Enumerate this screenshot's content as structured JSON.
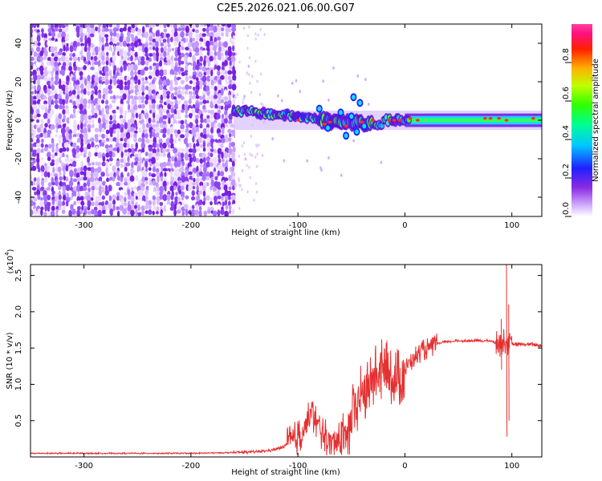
{
  "title": "C2E5.2026.021.06.00.G07",
  "colors": {
    "snr_line": "#e53030",
    "frame": "#000000"
  },
  "chart_data": [
    {
      "type": "heatmap",
      "name": "spectrogram",
      "xlabel": "Height of straight line (km)",
      "ylabel": "Frequency (Hz)",
      "xlim": [
        -350,
        128
      ],
      "ylim": [
        -50,
        50
      ],
      "xticks": [
        -300,
        -200,
        -100,
        0,
        100
      ],
      "xtick_labels": [
        "-300",
        "-200",
        "-100",
        "0",
        "100"
      ],
      "yticks": [
        -40,
        -20,
        0,
        20,
        40
      ],
      "ytick_labels": [
        "-40",
        "-20",
        "0",
        "20",
        "40"
      ],
      "colorbar": {
        "label": "Normalized spectral amplitude",
        "range": [
          0,
          1
        ],
        "ticks": [
          0.0,
          0.2,
          0.4,
          0.6,
          0.8
        ],
        "tick_labels": [
          "0.0",
          "0.2",
          "0.4",
          "0.6",
          "0.8"
        ],
        "colormap": "rainbow (violet to red)"
      },
      "features": [
        {
          "x_range": [
            -350,
            -160
          ],
          "description": "broadband noise, amplitude ~0.0-0.2"
        },
        {
          "x_range": [
            -160,
            128
          ],
          "center_freq_hz": 0,
          "description": "narrow tone near 0 Hz, amplitude ~0.3-0.9"
        }
      ]
    },
    {
      "type": "line",
      "name": "snr",
      "xlabel": "Height of straight line (km)",
      "ylabel": "SNR (10 * v/v)",
      "y_scale_label": "(x10^4)",
      "y_scale_base": "(x10",
      "y_scale_exp": "4",
      "y_scale_close": ")",
      "xlim": [
        -350,
        128
      ],
      "ylim": [
        0,
        2.65
      ],
      "xticks": [
        -300,
        -200,
        -100,
        0,
        100
      ],
      "xtick_labels": [
        "-300",
        "-200",
        "-100",
        "0",
        "100"
      ],
      "yticks": [
        0.5,
        1.0,
        1.5,
        2.0,
        2.5
      ],
      "ytick_labels": [
        "0.5",
        "1.0",
        "1.5",
        "2.0",
        "2.5"
      ],
      "series": [
        {
          "name": "SNR",
          "points": [
            [
              -350,
              0.05
            ],
            [
              -300,
              0.05
            ],
            [
              -250,
              0.05
            ],
            [
              -200,
              0.05
            ],
            [
              -160,
              0.06
            ],
            [
              -140,
              0.07
            ],
            [
              -125,
              0.09
            ],
            [
              -115,
              0.13
            ],
            [
              -105,
              0.22
            ],
            [
              -98,
              0.3
            ],
            [
              -92,
              0.45
            ],
            [
              -87,
              0.6
            ],
            [
              -82,
              0.45
            ],
            [
              -76,
              0.3
            ],
            [
              -70,
              0.2
            ],
            [
              -62,
              0.22
            ],
            [
              -55,
              0.35
            ],
            [
              -50,
              0.5
            ],
            [
              -45,
              0.72
            ],
            [
              -40,
              0.85
            ],
            [
              -35,
              0.95
            ],
            [
              -28,
              1.1
            ],
            [
              -20,
              1.2
            ],
            [
              -12,
              1.1
            ],
            [
              -5,
              1.05
            ],
            [
              0,
              1.2
            ],
            [
              5,
              1.32
            ],
            [
              15,
              1.45
            ],
            [
              25,
              1.52
            ],
            [
              35,
              1.58
            ],
            [
              50,
              1.6
            ],
            [
              70,
              1.6
            ],
            [
              80,
              1.6
            ],
            [
              88,
              1.55
            ],
            [
              93,
              1.6
            ],
            [
              100,
              1.55
            ],
            [
              110,
              1.55
            ],
            [
              120,
              1.55
            ],
            [
              128,
              1.53
            ]
          ],
          "spikes": [
            [
              95,
              2.65,
              0.28
            ],
            [
              90,
              1.9,
              1.2
            ],
            [
              97,
              2.1,
              0.5
            ]
          ]
        }
      ]
    }
  ]
}
